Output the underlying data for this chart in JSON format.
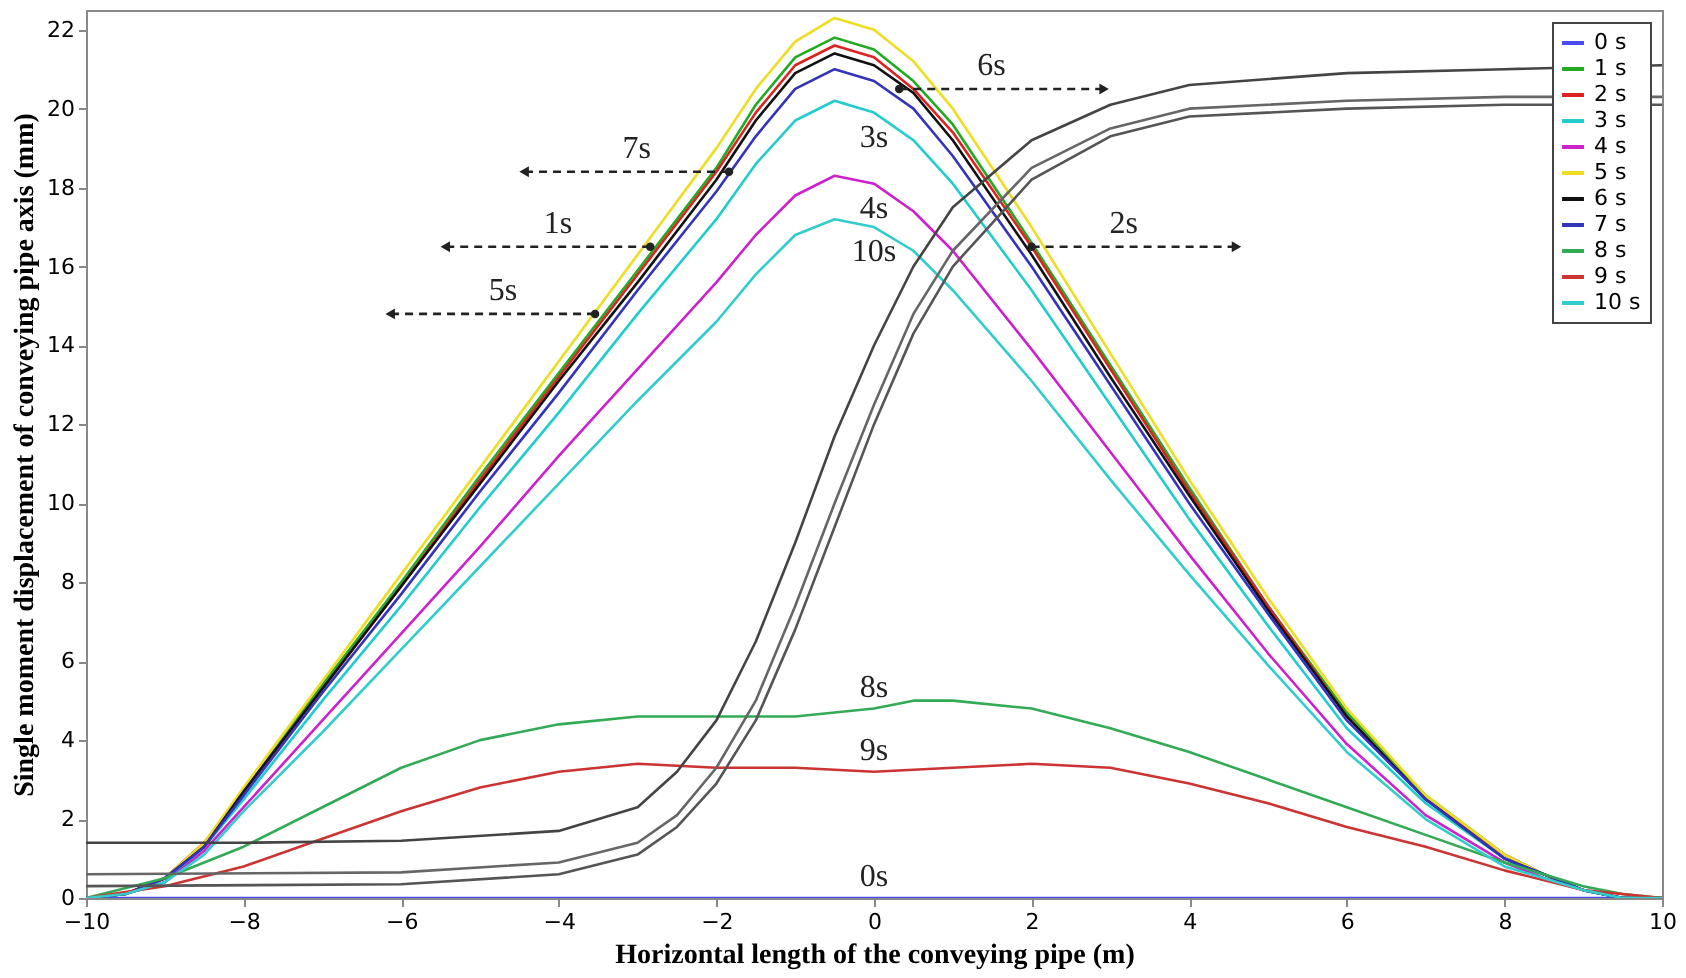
{
  "chart_data": {
    "type": "line",
    "xlabel": "Horizontal length of the conveying pipe (m)",
    "ylabel": "Single moment displacement of conveying pipe axis (mm)",
    "xlim": [
      -10,
      10
    ],
    "xticks": [
      -10,
      -8,
      -6,
      -4,
      -2,
      0,
      2,
      4,
      6,
      8,
      10
    ],
    "ylim": [
      0,
      22.5
    ],
    "yticks": [
      0,
      2,
      4,
      6,
      8,
      10,
      12,
      14,
      16,
      18,
      20,
      22
    ],
    "legend": "top right",
    "series": [
      {
        "name": "0 s",
        "color": "#4a4af0",
        "x": [
          -10,
          10
        ],
        "values": [
          0,
          0
        ]
      },
      {
        "name": "1 s",
        "color": "#22aa22",
        "x": [
          -10,
          -9.5,
          -9,
          -8.5,
          -8,
          -7,
          -6,
          -5,
          -4,
          -3,
          -2,
          -1.5,
          -1,
          -0.5,
          0,
          0.5,
          1,
          2,
          3,
          4,
          5,
          6,
          7,
          8,
          8.5,
          9,
          9.5,
          10
        ],
        "values": [
          0,
          0.1,
          0.5,
          1.4,
          2.7,
          5.4,
          8.0,
          10.7,
          13.3,
          15.9,
          18.5,
          20.1,
          21.3,
          21.8,
          21.5,
          20.7,
          19.6,
          16.6,
          13.5,
          10.4,
          7.4,
          4.7,
          2.6,
          1.1,
          0.6,
          0.2,
          0,
          0
        ]
      },
      {
        "name": "2 s",
        "color": "#dd2222",
        "x": [
          -10,
          -9.5,
          -9,
          -8.5,
          -8,
          -7,
          -6,
          -5,
          -4,
          -3,
          -2,
          -1.5,
          -1,
          -0.5,
          0,
          0.5,
          1,
          2,
          3,
          4,
          5,
          6,
          7,
          8,
          8.5,
          9,
          9.5,
          10
        ],
        "values": [
          0,
          0.1,
          0.5,
          1.4,
          2.7,
          5.3,
          7.9,
          10.6,
          13.2,
          15.8,
          18.4,
          19.9,
          21.1,
          21.6,
          21.3,
          20.5,
          19.4,
          16.5,
          13.4,
          10.3,
          7.4,
          4.6,
          2.5,
          1.1,
          0.6,
          0.2,
          0,
          0
        ]
      },
      {
        "name": "3 s",
        "color": "#22cccc",
        "x": [
          -10,
          -9.5,
          -9,
          -8.5,
          -8,
          -7,
          -6,
          -5,
          -4,
          -3,
          -2,
          -1.5,
          -1,
          -0.5,
          0,
          0.5,
          1,
          2,
          3,
          4,
          5,
          6,
          7,
          8,
          8.5,
          9,
          9.5,
          10
        ],
        "values": [
          0,
          0.1,
          0.4,
          1.3,
          2.5,
          5.0,
          7.4,
          9.9,
          12.3,
          14.8,
          17.2,
          18.6,
          19.7,
          20.2,
          19.9,
          19.2,
          18.1,
          15.4,
          12.5,
          9.6,
          6.9,
          4.3,
          2.4,
          1.0,
          0.5,
          0.2,
          0,
          0
        ]
      },
      {
        "name": "4 s",
        "color": "#cc22cc",
        "x": [
          -10,
          -9.5,
          -9,
          -8.5,
          -8,
          -7,
          -6,
          -5,
          -4,
          -3,
          -2,
          -1.5,
          -1,
          -0.5,
          0,
          0.5,
          1,
          2,
          3,
          4,
          5,
          6,
          7,
          8,
          8.5,
          9
        ],
        "values": [
          0,
          0.1,
          0.4,
          1.2,
          2.3,
          4.5,
          6.7,
          8.9,
          11.2,
          13.4,
          15.6,
          16.8,
          17.8,
          18.3,
          18.1,
          17.4,
          16.4,
          13.9,
          11.3,
          8.7,
          6.2,
          3.9,
          2.1,
          0.9,
          0.5,
          0.2
        ]
      },
      {
        "name": "5 s",
        "color": "#eedd22",
        "x": [
          -10,
          -9.5,
          -9,
          -8.5,
          -8,
          -7,
          -6,
          -5,
          -4,
          -3,
          -2,
          -1.5,
          -1,
          -0.5,
          0,
          0.5,
          1,
          2,
          3,
          4,
          5,
          6,
          7,
          8,
          8.5,
          9
        ],
        "values": [
          0,
          0.1,
          0.5,
          1.4,
          2.8,
          5.5,
          8.2,
          10.9,
          13.6,
          16.3,
          19.0,
          20.5,
          21.7,
          22.3,
          22.0,
          21.2,
          20.0,
          17.0,
          13.8,
          10.6,
          7.6,
          4.8,
          2.6,
          1.1,
          0.6,
          0.2
        ]
      },
      {
        "name": "6 s",
        "color": "#111111",
        "x": [
          -10,
          -9.5,
          -9,
          -8.5,
          -8,
          -7,
          -6,
          -5,
          -4,
          -3,
          -2,
          -1.5,
          -1,
          -0.5,
          0,
          0.5,
          1,
          2,
          3,
          4,
          5,
          6,
          7,
          8,
          8.5,
          9,
          9.5,
          10
        ],
        "values": [
          0,
          0.1,
          0.5,
          1.3,
          2.7,
          5.3,
          7.9,
          10.5,
          13.1,
          15.6,
          18.2,
          19.7,
          20.9,
          21.4,
          21.1,
          20.4,
          19.2,
          16.3,
          13.2,
          10.2,
          7.3,
          4.6,
          2.5,
          1.0,
          0.6,
          0.2,
          0,
          0
        ]
      },
      {
        "name": "7 s",
        "color": "#3333bb",
        "x": [
          -10,
          -9.5,
          -9,
          -8.5,
          -8,
          -7,
          -6,
          -5,
          -4,
          -3,
          -2,
          -1.5,
          -1,
          -0.5,
          0,
          0.5,
          1,
          2,
          3,
          4,
          5,
          6,
          7,
          8,
          8.5,
          9,
          9.5,
          10
        ],
        "values": [
          0,
          0.1,
          0.5,
          1.3,
          2.6,
          5.2,
          7.7,
          10.3,
          12.8,
          15.4,
          17.9,
          19.3,
          20.5,
          21.0,
          20.7,
          20.0,
          18.8,
          16.0,
          13.0,
          10.0,
          7.2,
          4.5,
          2.5,
          1.0,
          0.6,
          0.2,
          0,
          0
        ]
      },
      {
        "name": "8 s",
        "color": "#33aa55",
        "x": [
          -10,
          -9,
          -8,
          -7,
          -6,
          -5,
          -4,
          -3,
          -2,
          -1,
          0,
          0.5,
          1,
          2,
          3,
          4,
          5,
          6,
          7,
          8,
          9,
          9.5,
          10
        ],
        "values": [
          0,
          0.5,
          1.3,
          2.3,
          3.3,
          4.0,
          4.4,
          4.6,
          4.6,
          4.6,
          4.8,
          5.0,
          5.0,
          4.8,
          4.3,
          3.7,
          3.0,
          2.3,
          1.6,
          0.9,
          0.3,
          0.1,
          0
        ]
      },
      {
        "name": "9 s",
        "color": "#cc3333",
        "x": [
          -10,
          -9,
          -8,
          -7,
          -6,
          -5,
          -4,
          -3,
          -2,
          -1,
          0,
          1,
          2,
          3,
          4,
          5,
          6,
          7,
          8,
          9,
          10
        ],
        "values": [
          0,
          0.3,
          0.8,
          1.5,
          2.2,
          2.8,
          3.2,
          3.4,
          3.3,
          3.3,
          3.2,
          3.3,
          3.4,
          3.3,
          2.9,
          2.4,
          1.8,
          1.3,
          0.7,
          0.2,
          0
        ]
      },
      {
        "name": "10 s",
        "color": "#33cccc",
        "x": [
          -10,
          -9.5,
          -9,
          -8.5,
          -8,
          -7,
          -6,
          -5,
          -4,
          -3,
          -2,
          -1.5,
          -1,
          -0.5,
          0,
          0.5,
          1,
          2,
          3,
          4,
          5,
          6,
          7,
          8,
          8.5,
          9,
          9.5,
          10
        ],
        "values": [
          0,
          0.1,
          0.4,
          1.1,
          2.2,
          4.2,
          6.3,
          8.4,
          10.5,
          12.6,
          14.6,
          15.8,
          16.8,
          17.2,
          17.0,
          16.4,
          15.4,
          13.1,
          10.6,
          8.2,
          5.9,
          3.7,
          2.0,
          0.8,
          0.5,
          0.2,
          0,
          0
        ]
      },
      {
        "color": "#444444",
        "x": [
          -10,
          -8,
          -6,
          -4,
          -3,
          -2.5,
          -2,
          -1.5,
          -1,
          -0.5,
          0,
          0.5,
          1,
          2,
          3,
          4,
          6,
          8,
          10
        ],
        "values": [
          1.4,
          1.4,
          1.45,
          1.7,
          2.3,
          3.2,
          4.5,
          6.5,
          9.0,
          11.7,
          14.0,
          16.0,
          17.5,
          19.2,
          20.1,
          20.6,
          20.9,
          21.0,
          21.1
        ]
      },
      {
        "color": "#666666",
        "x": [
          -10,
          -6,
          -4,
          -3,
          -2.5,
          -2,
          -1.5,
          -1,
          -0.5,
          0,
          0.5,
          1,
          2,
          3,
          4,
          6,
          8,
          10
        ],
        "values": [
          0.6,
          0.65,
          0.9,
          1.4,
          2.1,
          3.3,
          5.0,
          7.4,
          10.0,
          12.5,
          14.8,
          16.4,
          18.5,
          19.5,
          20.0,
          20.2,
          20.3,
          20.3
        ]
      },
      {
        "color": "#555555",
        "x": [
          -10,
          -6,
          -4,
          -3,
          -2.5,
          -2,
          -1.5,
          -1,
          -0.5,
          0,
          0.5,
          1,
          2,
          3,
          4,
          6,
          8,
          10
        ],
        "values": [
          0.3,
          0.35,
          0.6,
          1.1,
          1.8,
          2.9,
          4.5,
          6.8,
          9.4,
          12.0,
          14.3,
          16.0,
          18.2,
          19.3,
          19.8,
          20.0,
          20.1,
          20.1
        ]
      }
    ],
    "annotations": [
      {
        "text": "7s",
        "x": -1.84,
        "y": 18.4
      },
      {
        "text": "1s",
        "x": -2.84,
        "y": 16.5
      },
      {
        "text": "5s",
        "x": -3.54,
        "y": 14.8
      },
      {
        "text": "6s",
        "x": 0.32,
        "y": 20.5
      },
      {
        "text": "2s",
        "x": 2.0,
        "y": 16.5
      },
      {
        "text": "3s",
        "x": 0,
        "y": 19.9
      },
      {
        "text": "4s",
        "x": 0,
        "y": 18.1
      },
      {
        "text": "10s",
        "x": 0,
        "y": 17.0
      },
      {
        "text": "8s",
        "x": 0,
        "y": 4.8
      },
      {
        "text": "9s",
        "x": 0,
        "y": 3.2
      },
      {
        "text": "0s",
        "x": 0,
        "y": 0
      }
    ]
  }
}
